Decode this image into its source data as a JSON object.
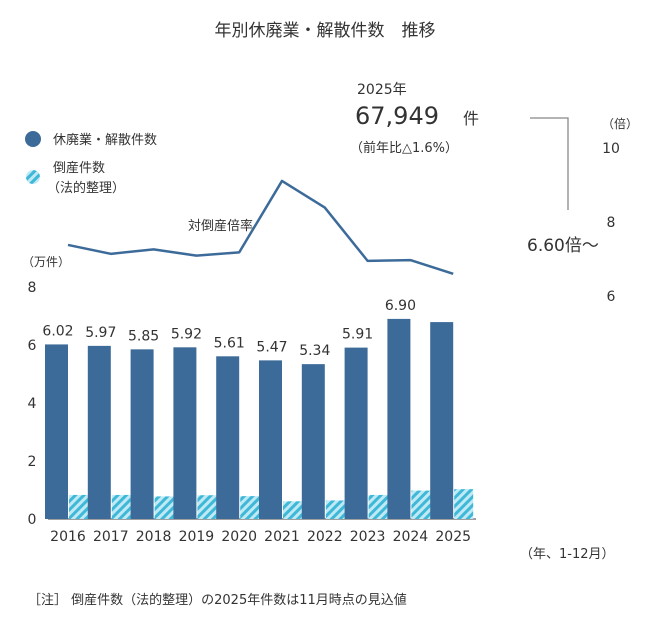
{
  "chart_data": {
    "type": "bar",
    "title": "年別休廃業・解散件数　推移",
    "categories": [
      "2016",
      "2017",
      "2018",
      "2019",
      "2020",
      "2021",
      "2022",
      "2023",
      "2024",
      "2025"
    ],
    "x_unit_label": "（年、1-12月）",
    "left_axis": {
      "unit_label": "（万件）",
      "ylim": [
        0,
        8
      ],
      "ticks": [
        "0",
        "2",
        "4",
        "6",
        "8"
      ]
    },
    "right_axis": {
      "unit_label": "（倍）",
      "ylim": [
        6,
        10
      ],
      "ticks": [
        "6",
        "8",
        "10"
      ]
    },
    "series": [
      {
        "name": "休廃業・解散件数",
        "type": "bar",
        "color": "#3d6b99",
        "values": [
          6.02,
          5.97,
          5.85,
          5.92,
          5.61,
          5.47,
          5.34,
          5.91,
          6.9,
          6.79
        ],
        "data_labels": [
          "6.02",
          "5.97",
          "5.85",
          "5.92",
          "5.61",
          "5.47",
          "5.34",
          "5.91",
          "6.90",
          ""
        ]
      },
      {
        "name": "倒産件数\n（法的整理）",
        "name_lines": [
          "倒産件数",
          "（法的整理）"
        ],
        "type": "bar",
        "pattern": "hatched",
        "color": "#4fc3e0",
        "values": [
          0.83,
          0.83,
          0.78,
          0.82,
          0.79,
          0.61,
          0.64,
          0.83,
          0.98,
          1.03
        ]
      },
      {
        "name": "対倒産倍率",
        "type": "line",
        "axis": "right",
        "color": "#3d6b99",
        "values": [
          7.38,
          7.14,
          7.26,
          7.09,
          7.18,
          9.11,
          8.39,
          6.95,
          6.97,
          6.6
        ]
      }
    ],
    "annotations": {
      "year": "2025年",
      "count": "67,949",
      "count_unit": "件",
      "yoy": "（前年比△1.6%）",
      "ratio_label": "6.60倍～"
    },
    "note": "［注］ 倒産件数（法的整理）の2025年件数は11月時点の見込値",
    "legend_placement": "top-left",
    "grid": false
  }
}
